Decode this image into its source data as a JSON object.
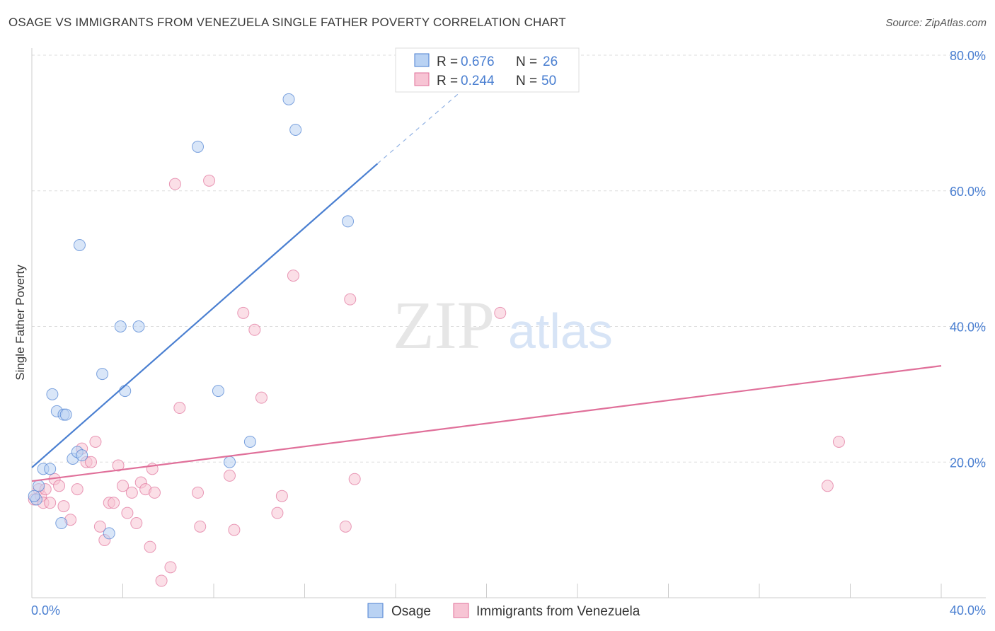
{
  "header": {
    "title": "OSAGE VS IMMIGRANTS FROM VENEZUELA SINGLE FATHER POVERTY CORRELATION CHART",
    "source": "Source: ZipAtlas.com"
  },
  "watermark": {
    "zip": "ZIP",
    "atlas": "atlas"
  },
  "colors": {
    "osage": "#4a7fd1",
    "osage_fill": "#b9d2f3",
    "venezuela": "#e0709a",
    "venezuela_fill": "#f7c4d4",
    "grid": "#dddddd",
    "axis_text": "#4a7fd1"
  },
  "legend": {
    "rows": [
      {
        "r_label": "R =",
        "r_value": "0.676",
        "n_label": "N =",
        "n_value": "26"
      },
      {
        "r_label": "R =",
        "r_value": "0.244",
        "n_label": "N =",
        "n_value": "50"
      }
    ]
  },
  "chart_data": {
    "type": "scatter",
    "title": "OSAGE VS IMMIGRANTS FROM VENEZUELA SINGLE FATHER POVERTY CORRELATION CHART",
    "xlabel": "",
    "ylabel": "Single Father Poverty",
    "xlim": [
      0,
      40
    ],
    "ylim": [
      0,
      80
    ],
    "x_tick_labels": [
      "0.0%",
      "40.0%"
    ],
    "y_ticks": [
      20,
      40,
      60,
      80
    ],
    "y_tick_labels": [
      "20.0%",
      "40.0%",
      "60.0%",
      "80.0%"
    ],
    "grid": true,
    "legend_position": "top-center",
    "series": [
      {
        "name": "Osage",
        "r": 0.676,
        "n": 26,
        "trend": {
          "x0": 0.0,
          "y0": 19.2,
          "x1": 15.2,
          "y1": 64.0,
          "x_dash_end": 19.0,
          "y_dash_end": 75.0
        },
        "points": [
          [
            0.2,
            14.5
          ],
          [
            0.3,
            16.5
          ],
          [
            0.5,
            19.0
          ],
          [
            0.8,
            19.0
          ],
          [
            0.9,
            30.0
          ],
          [
            1.1,
            27.5
          ],
          [
            1.3,
            11.0
          ],
          [
            1.4,
            27.0
          ],
          [
            1.5,
            27.0
          ],
          [
            1.8,
            20.5
          ],
          [
            2.0,
            21.5
          ],
          [
            2.1,
            52.0
          ],
          [
            2.2,
            21.0
          ],
          [
            3.1,
            33.0
          ],
          [
            3.4,
            9.5
          ],
          [
            3.9,
            40.0
          ],
          [
            4.1,
            30.5
          ],
          [
            4.7,
            40.0
          ],
          [
            7.3,
            66.5
          ],
          [
            8.2,
            30.5
          ],
          [
            9.6,
            23.0
          ],
          [
            8.7,
            20.0
          ],
          [
            11.3,
            73.5
          ],
          [
            11.6,
            69.0
          ],
          [
            13.9,
            55.5
          ],
          [
            0.1,
            15.0
          ]
        ]
      },
      {
        "name": "Immigrants from Venezuela",
        "r": 0.244,
        "n": 50,
        "trend": {
          "x0": 0.0,
          "y0": 17.2,
          "x1": 40.0,
          "y1": 34.2
        },
        "points": [
          [
            0.1,
            14.5
          ],
          [
            0.3,
            16.0
          ],
          [
            0.4,
            15.0
          ],
          [
            0.5,
            14.0
          ],
          [
            0.6,
            16.0
          ],
          [
            0.8,
            14.0
          ],
          [
            1.0,
            17.5
          ],
          [
            1.2,
            16.5
          ],
          [
            1.4,
            13.5
          ],
          [
            1.7,
            11.5
          ],
          [
            2.0,
            16.0
          ],
          [
            2.2,
            22.0
          ],
          [
            2.4,
            20.0
          ],
          [
            2.6,
            20.0
          ],
          [
            2.8,
            23.0
          ],
          [
            3.0,
            10.5
          ],
          [
            3.2,
            8.5
          ],
          [
            3.4,
            14.0
          ],
          [
            3.6,
            14.0
          ],
          [
            3.8,
            19.5
          ],
          [
            4.0,
            16.5
          ],
          [
            4.2,
            12.5
          ],
          [
            4.4,
            15.5
          ],
          [
            4.6,
            11.0
          ],
          [
            4.8,
            17.0
          ],
          [
            5.0,
            16.0
          ],
          [
            5.2,
            7.5
          ],
          [
            5.3,
            19.0
          ],
          [
            5.4,
            15.5
          ],
          [
            5.7,
            2.5
          ],
          [
            6.1,
            4.5
          ],
          [
            6.3,
            61.0
          ],
          [
            6.5,
            28.0
          ],
          [
            7.3,
            15.5
          ],
          [
            7.4,
            10.5
          ],
          [
            7.8,
            61.5
          ],
          [
            8.7,
            18.0
          ],
          [
            8.9,
            10.0
          ],
          [
            9.3,
            42.0
          ],
          [
            9.8,
            39.5
          ],
          [
            10.1,
            29.5
          ],
          [
            10.8,
            12.5
          ],
          [
            11.0,
            15.0
          ],
          [
            11.5,
            47.5
          ],
          [
            14.0,
            44.0
          ],
          [
            13.8,
            10.5
          ],
          [
            14.2,
            17.5
          ],
          [
            20.6,
            42.0
          ],
          [
            35.0,
            16.5
          ],
          [
            35.5,
            23.0
          ]
        ]
      }
    ]
  }
}
